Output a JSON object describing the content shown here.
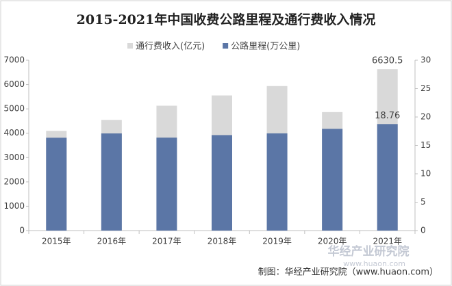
{
  "chart_data": {
    "type": "bar",
    "title": "2015-2021年中国收费公路里程及通行费收入情况",
    "categories": [
      "2015年",
      "2016年",
      "2017年",
      "2018年",
      "2019年",
      "2020年",
      "2021年"
    ],
    "series": [
      {
        "name": "通行费收入(亿元)",
        "color": "#d9d9d9",
        "values": [
          4097.8,
          4548.5,
          5130.2,
          5552.1,
          5937.9,
          4868.2,
          6630.5
        ],
        "data_labels": "last"
      },
      {
        "name": "公路里程(万公里)",
        "color": "#5b76a6",
        "axis": "y2",
        "values": [
          16.35,
          17.11,
          16.37,
          16.81,
          17.12,
          17.92,
          18.76
        ],
        "data_labels": "last"
      }
    ],
    "ylim": [
      0,
      7000
    ],
    "yticks": [
      0,
      1000,
      2000,
      3000,
      4000,
      5000,
      6000,
      7000
    ],
    "y2lim": [
      0,
      30
    ],
    "y2ticks": [
      0,
      5,
      10,
      15,
      20,
      25,
      30
    ],
    "grid": false,
    "legend": "top",
    "source": "制图：华经产业研究院（www.huaon.com）",
    "watermark": "华经产业研究院",
    "watermark_url": "www.huaon.com"
  }
}
